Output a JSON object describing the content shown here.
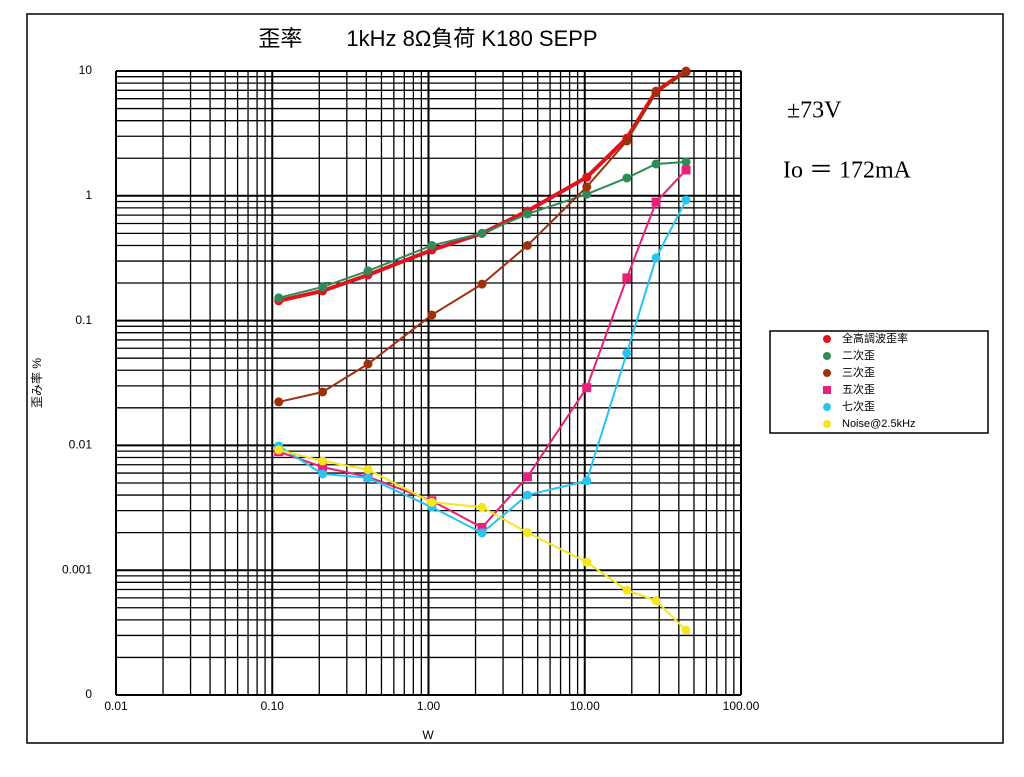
{
  "chart_data": {
    "type": "line",
    "title": "歪率　　1kHz 8Ω負荷 K180 SEPP",
    "xlabel": "W",
    "ylabel": "歪み率 %",
    "annotations": [
      "±73V",
      "Io ＝ 172mA"
    ],
    "log_x": true,
    "log_y": true,
    "grid": true,
    "legend": "right",
    "xlim": [
      0.01,
      100
    ],
    "ylim": [
      0.0001,
      10
    ],
    "xticks": [
      0.01,
      {
        "value": 0.1,
        "label": "0.10"
      },
      {
        "value": 1,
        "label": "1.00"
      },
      {
        "value": 10,
        "label": "10.00"
      },
      {
        "value": 100,
        "label": "100.00"
      }
    ],
    "yticks": [
      {
        "value": 0.0001,
        "label": "0"
      },
      0.001,
      0.01,
      0.1,
      1,
      10
    ],
    "xminor": [
      0.02,
      0.03,
      0.04,
      0.05,
      0.06,
      0.07,
      0.08,
      0.09,
      0.2,
      0.3,
      0.4,
      0.5,
      0.6,
      0.7,
      0.8,
      0.9,
      2,
      3,
      4,
      5,
      6,
      7,
      8,
      9,
      20,
      30,
      40,
      50,
      60,
      70,
      80,
      90
    ],
    "yminor": [
      0.0002,
      0.0003,
      0.0004,
      0.0005,
      0.0006,
      0.0007,
      0.0008,
      0.0009,
      0.002,
      0.003,
      0.004,
      0.005,
      0.006,
      0.007,
      0.008,
      0.009,
      0.02,
      0.03,
      0.04,
      0.05,
      0.06,
      0.07,
      0.08,
      0.09,
      0.2,
      0.3,
      0.4,
      0.5,
      0.6,
      0.7,
      0.8,
      0.9,
      2,
      3,
      4,
      5,
      6,
      7,
      8,
      9
    ],
    "x": [
      0.11,
      0.21,
      0.41,
      1.05,
      2.2,
      4.3,
      10.3,
      18.6,
      28.6,
      44.5
    ],
    "series": [
      {
        "name": "全高調波歪率",
        "color": "#e0141e",
        "marker": "circle",
        "width": 4,
        "values": [
          0.144,
          0.173,
          0.232,
          0.368,
          0.5,
          0.755,
          1.41,
          2.9,
          6.9,
          10
        ]
      },
      {
        "name": "二次歪",
        "color": "#2e8b57",
        "marker": "circle",
        "width": 2,
        "values": [
          0.152,
          0.186,
          0.25,
          0.4,
          0.5,
          0.715,
          1.03,
          1.39,
          1.8,
          1.87
        ]
      },
      {
        "name": "三次歪",
        "color": "#a0300c",
        "marker": "circle",
        "width": 2,
        "values": [
          0.0223,
          0.0268,
          0.0449,
          0.111,
          0.196,
          0.4,
          1.18,
          2.75,
          6.7,
          9.8
        ]
      },
      {
        "name": "五次歪",
        "color": "#e8207a",
        "marker": "square",
        "width": 2,
        "values": [
          0.0089,
          0.0067,
          0.0056,
          0.0036,
          0.0022,
          0.0056,
          0.029,
          0.22,
          0.89,
          1.61
        ]
      },
      {
        "name": "七次歪",
        "color": "#28c4f0",
        "marker": "circle",
        "width": 2,
        "values": [
          0.0099,
          0.0059,
          0.0055,
          0.0032,
          0.00199,
          0.004,
          0.0052,
          0.055,
          0.318,
          0.925
        ]
      },
      {
        "name": "Noise@2.5kHz",
        "color": "#f5e61e",
        "marker": "circle",
        "width": 2,
        "values": [
          0.0092,
          0.0075,
          0.0064,
          0.0035,
          0.0032,
          0.002,
          0.00116,
          0.00069,
          0.00057,
          0.00033
        ]
      }
    ]
  }
}
